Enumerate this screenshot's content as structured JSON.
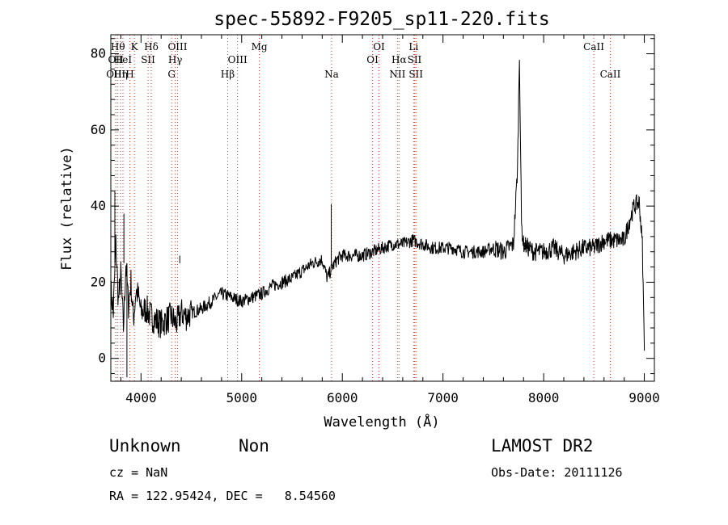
{
  "chart_data": {
    "type": "line",
    "title": "spec-55892-F9205_sp11-220.fits",
    "xlabel": "Wavelength (Å)",
    "ylabel": "Flux (relative)",
    "xlim": [
      3700,
      9100
    ],
    "ylim": [
      -6,
      85
    ],
    "x_ticks": [
      4000,
      5000,
      6000,
      7000,
      8000,
      9000
    ],
    "y_ticks": [
      0,
      20,
      40,
      60,
      80
    ],
    "grid": false,
    "line_color": "#000000",
    "marker_color": "#d0342c",
    "series": [
      {
        "x": [
          3700,
          3725,
          3750,
          3775,
          3800,
          3825,
          3850,
          3875,
          3900,
          3925,
          3950,
          3975,
          4000,
          4050,
          4100,
          4150,
          4200,
          4250,
          4300,
          4350,
          4400,
          4450,
          4500,
          4600,
          4700,
          4800,
          4900,
          5000,
          5100,
          5200,
          5300,
          5400,
          5500,
          5600,
          5700,
          5800,
          5850,
          5900,
          5950,
          6000,
          6100,
          6200,
          6300,
          6400,
          6500,
          6600,
          6700,
          6800,
          6900,
          7000,
          7100,
          7200,
          7300,
          7400,
          7500,
          7600,
          7700,
          7740,
          7760,
          7780,
          7800,
          7900,
          8000,
          8100,
          8200,
          8300,
          8400,
          8500,
          8600,
          8700,
          8800,
          8850,
          8900,
          8950,
          8980,
          9000
        ],
        "y": [
          18,
          12,
          30,
          15,
          22,
          8,
          25,
          14,
          20,
          10,
          18,
          16,
          12,
          13,
          11,
          10,
          9,
          10,
          11,
          9,
          12,
          11,
          12,
          13,
          15,
          17,
          16,
          15,
          16,
          17,
          19,
          20,
          21,
          23,
          25,
          26,
          21,
          24,
          26,
          27,
          27,
          27,
          28,
          29,
          30,
          30,
          31,
          30,
          29,
          29,
          29,
          28,
          28,
          28,
          29,
          28,
          30,
          50,
          80,
          35,
          30,
          28,
          28,
          29,
          27,
          28,
          29,
          29,
          31,
          31,
          31,
          36,
          40,
          41,
          30,
          2
        ]
      }
    ],
    "spike_annotations": [
      {
        "x": 5890,
        "y": 40.5
      },
      {
        "x": 4385,
        "y": 27
      },
      {
        "x": 3740,
        "y": 44
      },
      {
        "x": 3830,
        "y": 38
      },
      {
        "x": 3860,
        "y": -5
      }
    ],
    "lines_red": [
      {
        "x": 3750,
        "label": "OII",
        "row": 1
      },
      {
        "x": 3770,
        "label": "Hθ",
        "row": 0
      },
      {
        "x": 3750,
        "label": "OIII",
        "row": 2
      },
      {
        "x": 3797,
        "label": "Hη",
        "row": 2
      },
      {
        "x": 3820,
        "label": "HeI",
        "row": 1
      },
      {
        "x": 3889,
        "label": "H",
        "row": 2
      },
      {
        "x": 3934,
        "label": "K",
        "row": 0
      },
      {
        "x": 4070,
        "label": "SII",
        "row": 1
      },
      {
        "x": 4102,
        "label": "Hδ",
        "row": 0
      },
      {
        "x": 4304,
        "label": "G",
        "row": 2
      },
      {
        "x": 4340,
        "label": "Hγ",
        "row": 1
      },
      {
        "x": 4363,
        "label": "OIII",
        "row": 0
      },
      {
        "x": 4861,
        "label": "Hβ",
        "row": 2
      },
      {
        "x": 4959,
        "label": "OIII",
        "row": 1
      },
      {
        "x": 5175,
        "label": "Mg",
        "row": 0
      },
      {
        "x": 5893,
        "label": "Na",
        "row": 2
      },
      {
        "x": 6300,
        "label": "OI",
        "row": 1
      },
      {
        "x": 6364,
        "label": "OI",
        "row": 0
      },
      {
        "x": 6548,
        "label": "NII",
        "row": 2
      },
      {
        "x": 6563,
        "label": "Hα",
        "row": 1
      },
      {
        "x": 6708,
        "label": "Li",
        "row": 0
      },
      {
        "x": 6717,
        "label": "SII",
        "row": 1
      },
      {
        "x": 6731,
        "label": "SII",
        "row": 2
      },
      {
        "x": 8498,
        "label": "CaII",
        "row": 0
      },
      {
        "x": 8662,
        "label": "CaII",
        "row": 2
      }
    ]
  },
  "info": {
    "object_class": "Unknown",
    "subclass": "Non",
    "survey": "LAMOST DR2",
    "cz": "cz = NaN",
    "obs_date": "Obs-Date: 20111126",
    "coords": "RA = 122.95424, DEC =   8.54560"
  }
}
